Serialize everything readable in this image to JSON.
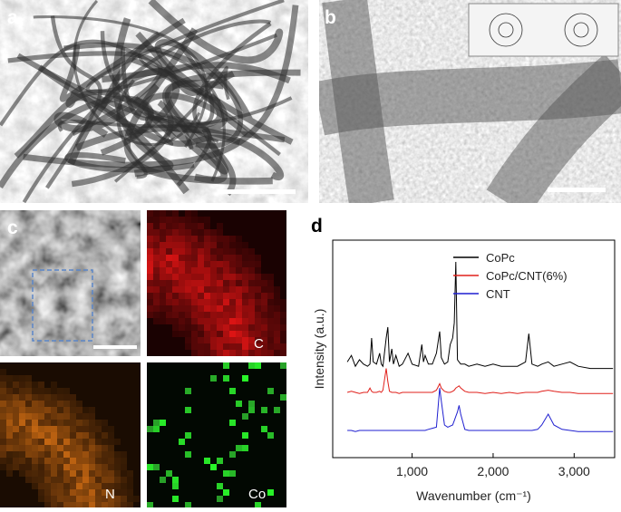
{
  "figure": {
    "panel_labels": [
      "a",
      "b",
      "c",
      "d"
    ],
    "map_labels": [
      "C",
      "N",
      "Co"
    ]
  },
  "chart_data": {
    "type": "line",
    "xlabel": "Wavenumber (cm⁻¹)",
    "ylabel": "Intensity (a.u.)",
    "x": [
      200,
      250,
      300,
      350,
      400,
      450,
      480,
      500,
      520,
      560,
      600,
      620,
      640,
      680,
      700,
      720,
      750,
      770,
      800,
      840,
      880,
      950,
      1000,
      1080,
      1120,
      1140,
      1160,
      1200,
      1250,
      1300,
      1340,
      1360,
      1400,
      1440,
      1470,
      1500,
      1520,
      1540,
      1560,
      1580,
      1600,
      1650,
      1700,
      1800,
      1900,
      2000,
      2100,
      2200,
      2300,
      2400,
      2440,
      2480,
      2550,
      2600,
      2680,
      2750,
      2850,
      2950,
      3050,
      3200,
      3350,
      3480
    ],
    "series": [
      {
        "name": "CoPc",
        "color": "#000000",
        "values": [
          44,
          47,
          42,
          45,
          43,
          42,
          43,
          55,
          44,
          43,
          48,
          43,
          42,
          55,
          60,
          44,
          50,
          43,
          47,
          42,
          43,
          48,
          43,
          42,
          52,
          44,
          47,
          43,
          43,
          48,
          58,
          46,
          43,
          44,
          52,
          55,
          62,
          90,
          45,
          44,
          43,
          43,
          42,
          43,
          42,
          43,
          42,
          42,
          42,
          44,
          57,
          43,
          42,
          43,
          44,
          42,
          43,
          44,
          42,
          41,
          41,
          41
        ]
      },
      {
        "name": "CoPc/CNT(6%)",
        "color": "#e0201b",
        "values": [
          30,
          30.5,
          30,
          29.5,
          30,
          30,
          32,
          30.5,
          30,
          30,
          30.5,
          30,
          31,
          41,
          35,
          30.5,
          30,
          30,
          30,
          29.5,
          30,
          30,
          30,
          30,
          30,
          30,
          30,
          30,
          30,
          31,
          34,
          32,
          30.5,
          30,
          30,
          30.5,
          31,
          32,
          32.5,
          33,
          32,
          30.5,
          30,
          30,
          29.5,
          30,
          29.5,
          30,
          29.5,
          30,
          30,
          30,
          30,
          30.5,
          31,
          30.5,
          30,
          30,
          29.5,
          29.5,
          29.5,
          29.5
        ]
      },
      {
        "name": "CNT",
        "color": "#1f1fd0",
        "values": [
          12.5,
          12.5,
          12,
          12.5,
          12.5,
          12.5,
          12.5,
          12.5,
          12.5,
          12.5,
          12.5,
          12.5,
          12.5,
          12.5,
          12.5,
          12.5,
          12.5,
          12.5,
          12.5,
          12.5,
          12.5,
          12.5,
          12.5,
          12.5,
          12.5,
          12.5,
          12.5,
          13,
          13.5,
          14,
          32,
          26,
          15,
          14,
          14.5,
          15,
          17,
          19,
          21,
          24,
          20,
          13,
          12.5,
          12.5,
          12.5,
          12.5,
          12.5,
          12.5,
          12.5,
          12.5,
          12.5,
          12.5,
          13,
          15,
          20,
          15,
          13,
          12.5,
          12,
          12,
          12,
          12
        ]
      }
    ],
    "xlim": [
      20,
      3500
    ],
    "ylim": [
      0,
      100
    ],
    "xticks": [
      {
        "value": 1000,
        "label": "1,000"
      },
      {
        "value": 2000,
        "label": "2,000"
      },
      {
        "value": 3000,
        "label": "3,000"
      }
    ],
    "legend": "upper-right"
  }
}
